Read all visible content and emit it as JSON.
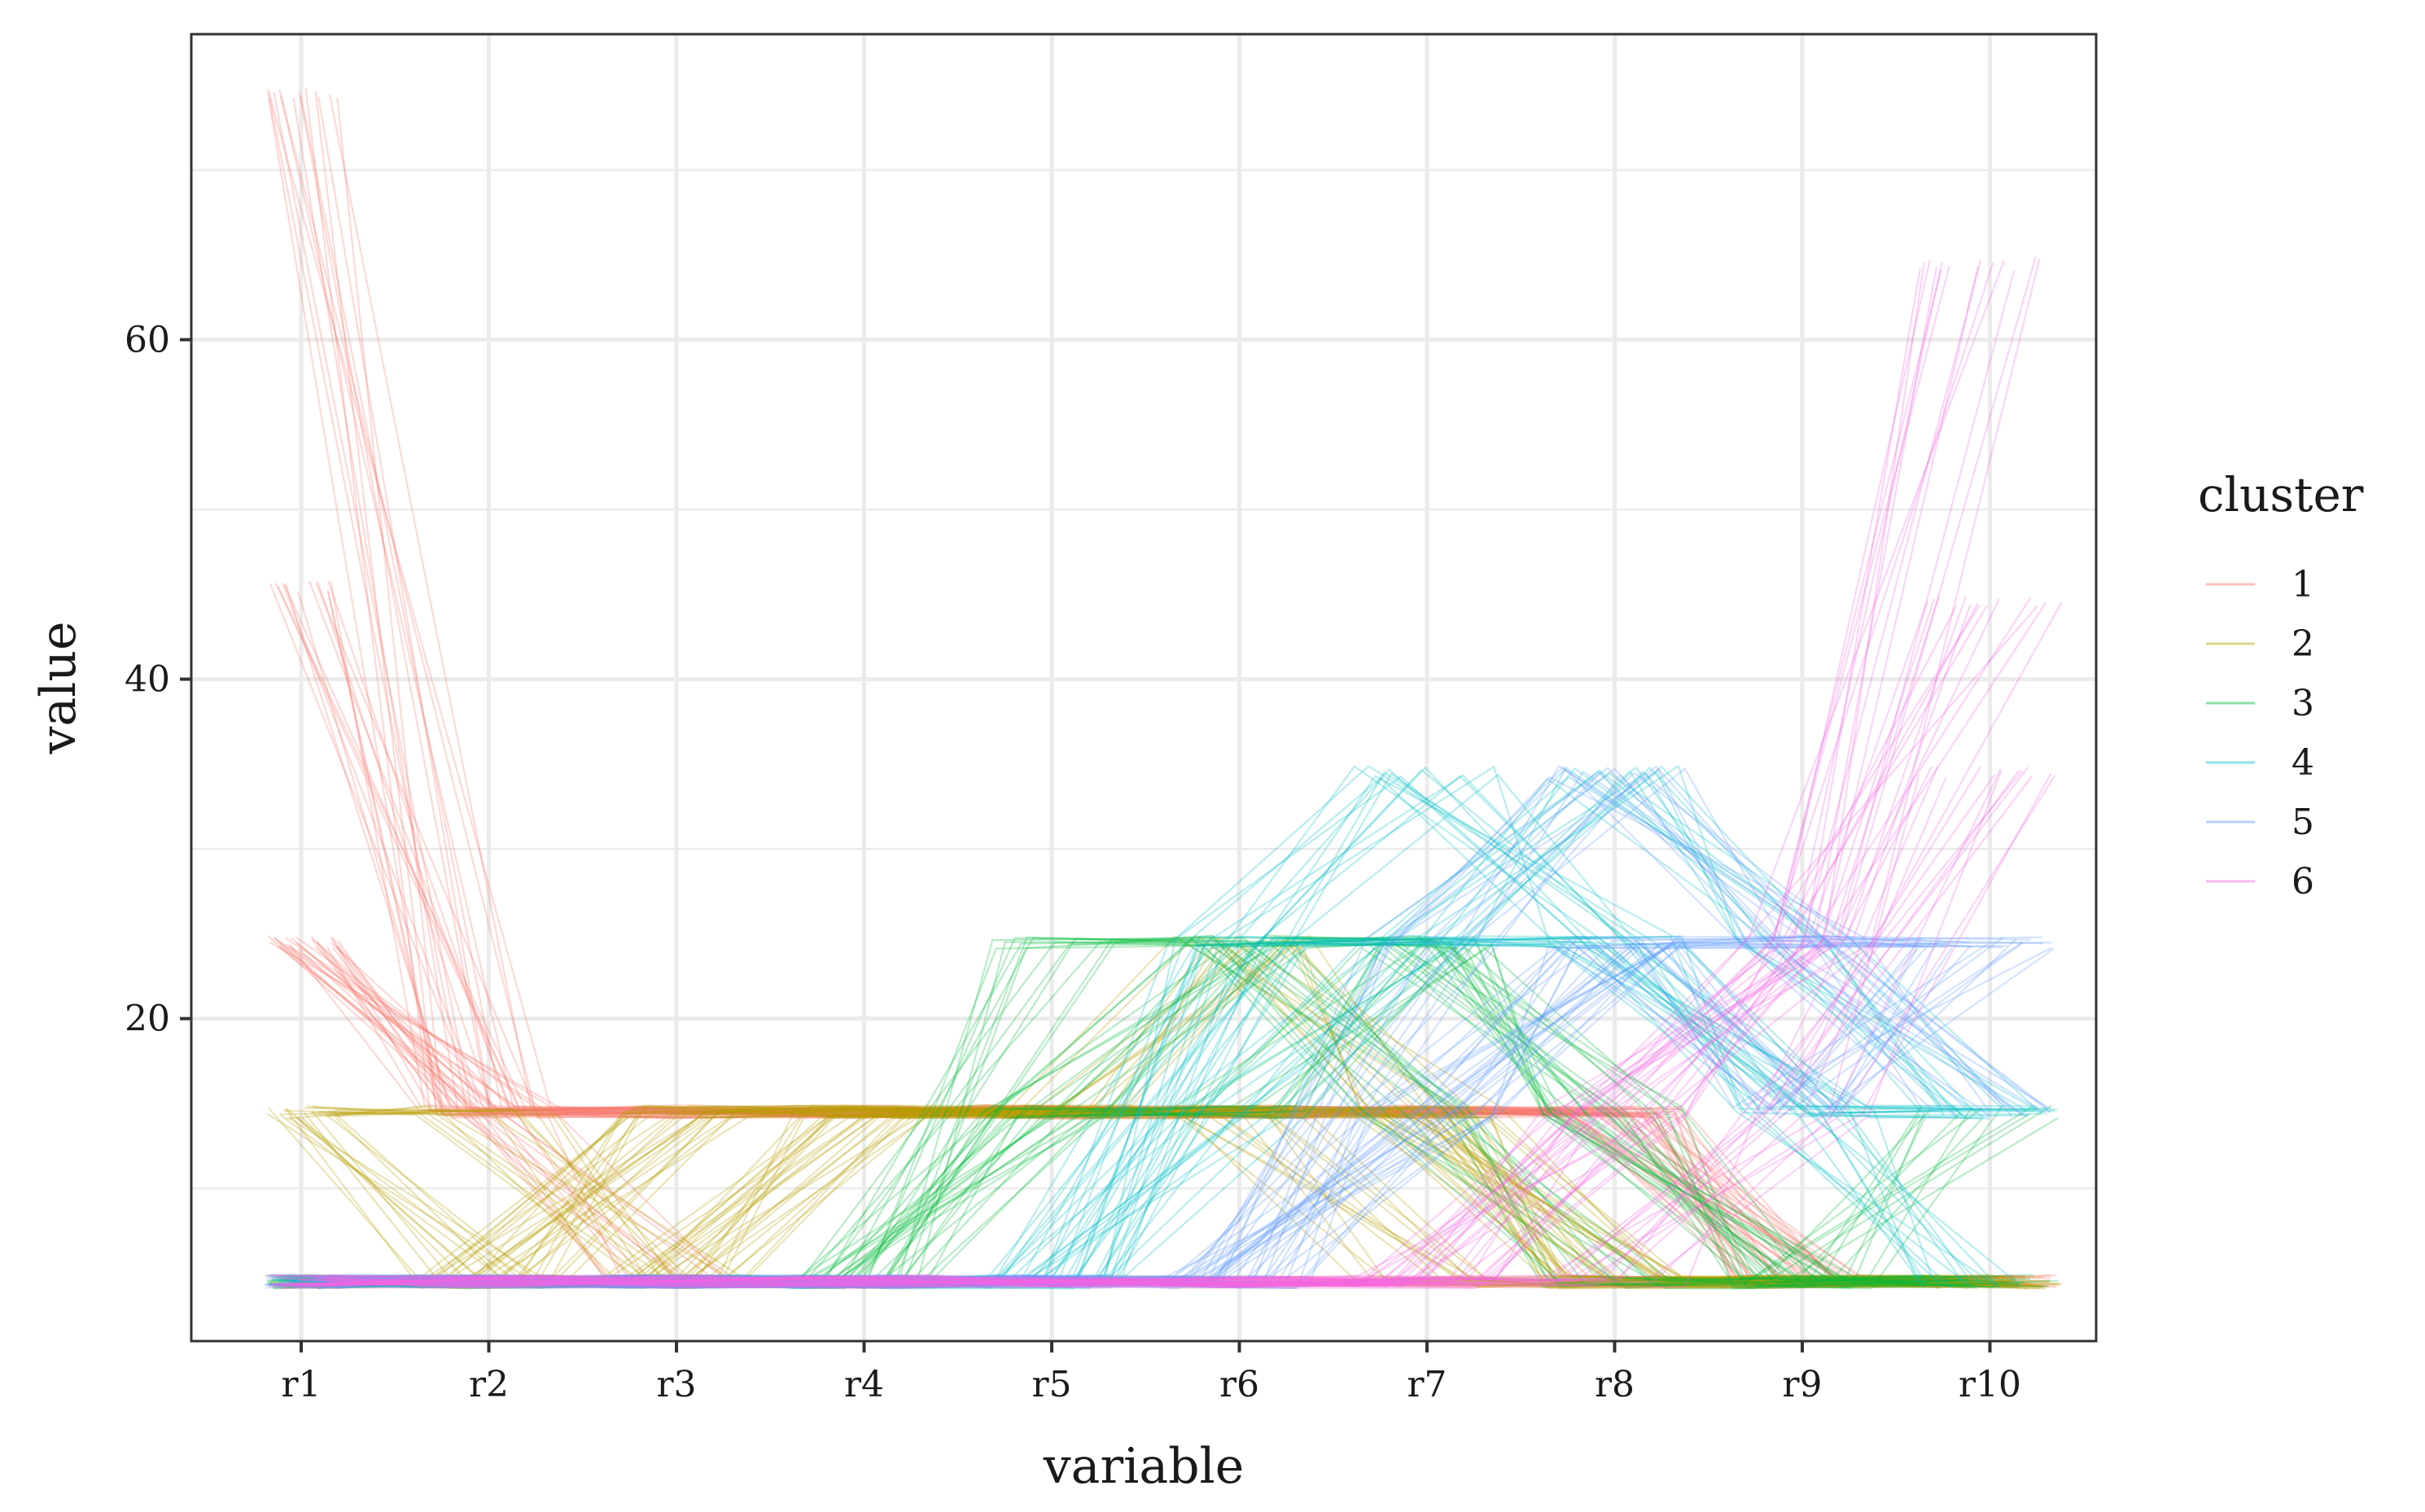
{
  "chart_data": {
    "type": "line",
    "subtype": "parallel-coordinates",
    "xlabel": "variable",
    "ylabel": "value",
    "categories": [
      "r1",
      "r2",
      "r3",
      "r4",
      "r5",
      "r6",
      "r7",
      "r8",
      "r9",
      "r10"
    ],
    "y_ticks": [
      20,
      40,
      60
    ],
    "ylim": [
      1,
      78
    ],
    "grid": true,
    "legend": {
      "title": "cluster",
      "position": "right",
      "entries": [
        "1",
        "2",
        "3",
        "4",
        "5",
        "6"
      ]
    },
    "colors": {
      "1": "#F8766D",
      "2": "#B79F00",
      "3": "#00BA38",
      "4": "#00BFC4",
      "5": "#619CFF",
      "6": "#F564E3"
    },
    "levels": [
      4.5,
      14.5,
      24.5
    ],
    "series": [
      {
        "name": "1",
        "values": [
          74.5,
          14.5,
          14.5,
          14.5,
          14.5,
          14.5,
          14.5,
          14.5,
          4.5,
          4.5
        ]
      },
      {
        "name": "1",
        "values": [
          24.5,
          14.5,
          4.5,
          4.5,
          4.5,
          4.5,
          4.5,
          4.5,
          4.5,
          4.5
        ]
      },
      {
        "name": "1",
        "values": [
          45.5,
          14.5,
          14.5,
          14.5,
          14.5,
          14.5,
          14.5,
          14.5,
          4.5,
          4.5
        ]
      },
      {
        "name": "1",
        "values": [
          24.5,
          14.5,
          14.5,
          14.5,
          14.5,
          14.5,
          14.5,
          14.5,
          4.5,
          4.5
        ]
      },
      {
        "name": "2",
        "values": [
          14.5,
          4.5,
          14.5,
          14.5,
          14.5,
          14.5,
          14.5,
          4.5,
          4.5,
          4.5
        ]
      },
      {
        "name": "2",
        "values": [
          14.5,
          14.5,
          4.5,
          14.5,
          14.5,
          24.5,
          14.5,
          4.5,
          4.5,
          4.5
        ]
      },
      {
        "name": "2",
        "values": [
          4.5,
          4.5,
          4.5,
          14.5,
          14.5,
          14.5,
          4.5,
          4.5,
          4.5,
          4.5
        ]
      },
      {
        "name": "2",
        "values": [
          4.5,
          4.5,
          14.5,
          14.5,
          14.5,
          14.5,
          14.5,
          4.5,
          4.5,
          4.5
        ]
      },
      {
        "name": "3",
        "values": [
          4.5,
          4.5,
          4.5,
          4.5,
          14.5,
          24.5,
          24.5,
          14.5,
          4.5,
          4.5
        ]
      },
      {
        "name": "3",
        "values": [
          4.5,
          4.5,
          4.5,
          4.5,
          24.5,
          24.5,
          14.5,
          4.5,
          4.5,
          14.5
        ]
      },
      {
        "name": "3",
        "values": [
          4.5,
          4.5,
          4.5,
          4.5,
          14.5,
          14.5,
          24.5,
          14.5,
          4.5,
          4.5
        ]
      },
      {
        "name": "4",
        "values": [
          4.5,
          4.5,
          4.5,
          4.5,
          4.5,
          14.5,
          24.5,
          34.5,
          24.5,
          14.5
        ]
      },
      {
        "name": "4",
        "values": [
          4.5,
          4.5,
          4.5,
          4.5,
          4.5,
          24.5,
          34.5,
          24.5,
          14.5,
          4.5
        ]
      },
      {
        "name": "4",
        "values": [
          4.5,
          4.5,
          4.5,
          4.5,
          4.5,
          24.5,
          24.5,
          24.5,
          14.5,
          14.5
        ]
      },
      {
        "name": "5",
        "values": [
          4.5,
          4.5,
          4.5,
          4.5,
          4.5,
          4.5,
          14.5,
          24.5,
          24.5,
          24.5
        ]
      },
      {
        "name": "5",
        "values": [
          4.5,
          4.5,
          4.5,
          4.5,
          4.5,
          4.5,
          24.5,
          34.5,
          24.5,
          14.5
        ]
      },
      {
        "name": "5",
        "values": [
          4.5,
          4.5,
          4.5,
          4.5,
          4.5,
          4.5,
          14.5,
          24.5,
          14.5,
          24.5
        ]
      },
      {
        "name": "6",
        "values": [
          4.5,
          4.5,
          4.5,
          4.5,
          4.5,
          4.5,
          4.5,
          14.5,
          24.5,
          44.5
        ]
      },
      {
        "name": "6",
        "values": [
          4.5,
          4.5,
          4.5,
          4.5,
          4.5,
          4.5,
          4.5,
          4.5,
          14.5,
          34.5
        ]
      },
      {
        "name": "6",
        "values": [
          4.5,
          4.5,
          4.5,
          4.5,
          4.5,
          4.5,
          4.5,
          14.5,
          24.5,
          64.5
        ]
      }
    ]
  }
}
